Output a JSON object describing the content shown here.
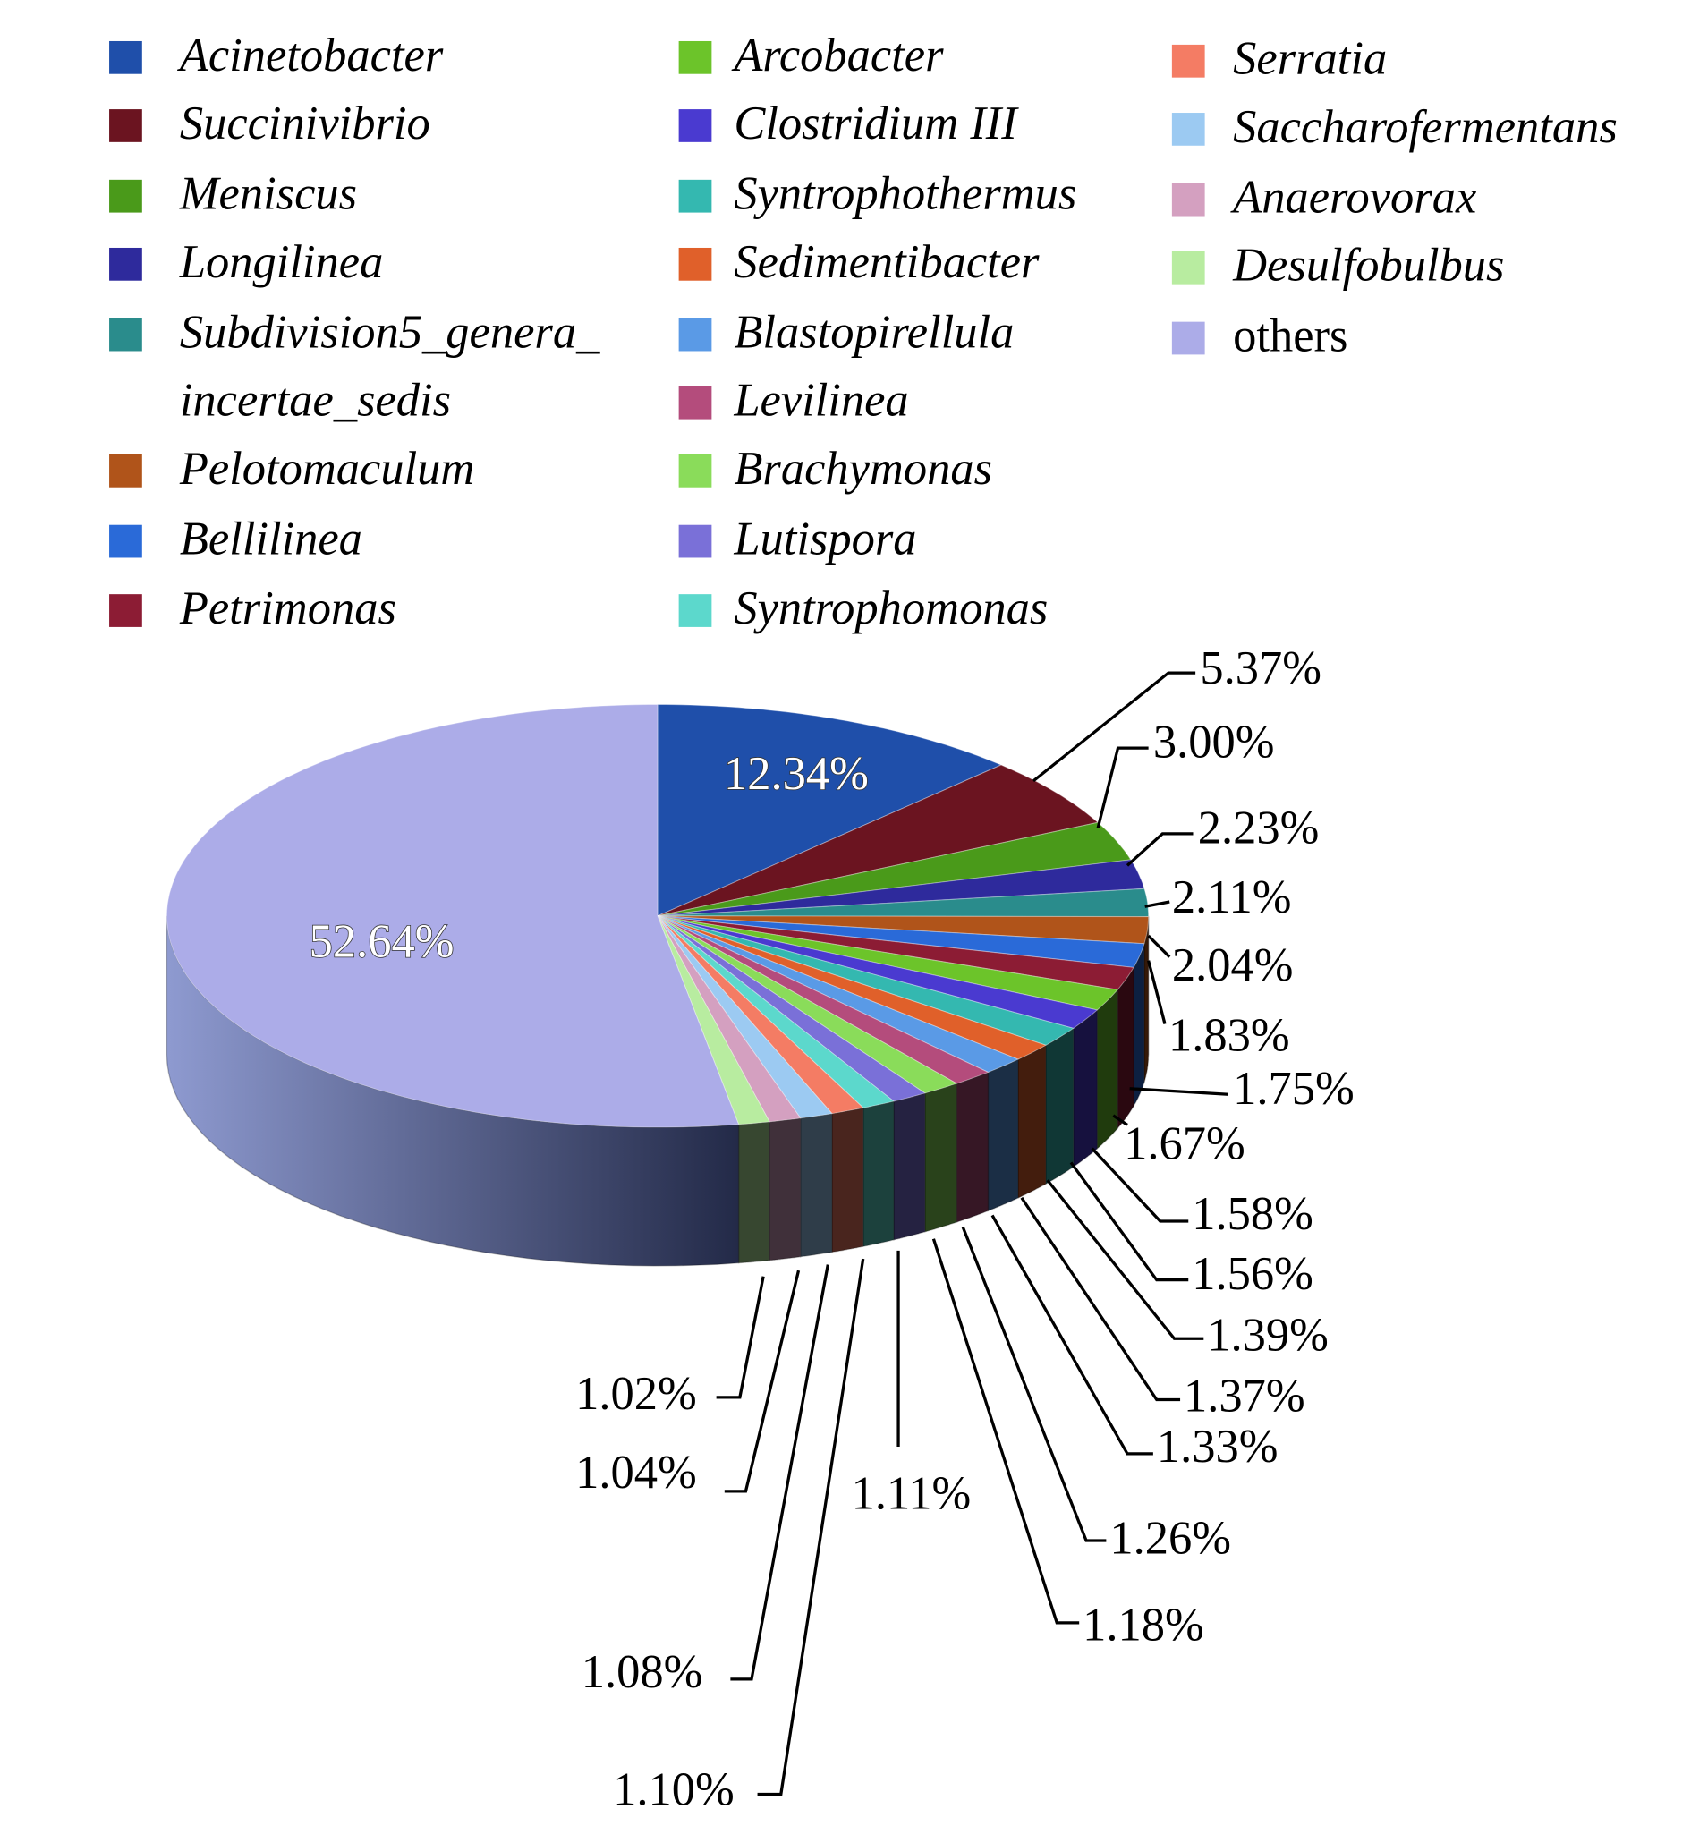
{
  "chart_data": {
    "type": "pie",
    "style": "3d",
    "legend_placement": "top",
    "slices": [
      {
        "name": "Acinetobacter",
        "value": 12.34,
        "label": "12.34%",
        "color": "#1f4faa"
      },
      {
        "name": "Succinivibrio",
        "value": 5.37,
        "label": "5.37%",
        "color": "#6b1420"
      },
      {
        "name": "Meniscus",
        "value": 3.0,
        "label": "3.00%",
        "color": "#4a9a1a"
      },
      {
        "name": "Longilinea",
        "value": 2.23,
        "label": "2.23%",
        "color": "#2e2a9c"
      },
      {
        "name": "Subdivision5_genera_incertae_sedis",
        "value": 2.11,
        "label": "2.11%",
        "color": "#2a8c8c"
      },
      {
        "name": "Pelotomaculum",
        "value": 2.04,
        "label": "2.04%",
        "color": "#b0541a"
      },
      {
        "name": "Bellilinea",
        "value": 1.83,
        "label": "1.83%",
        "color": "#2a6ad8"
      },
      {
        "name": "Petrimonas",
        "value": 1.75,
        "label": "1.75%",
        "color": "#8c1c34"
      },
      {
        "name": "Arcobacter",
        "value": 1.67,
        "label": "1.67%",
        "color": "#6cc42a"
      },
      {
        "name": "Clostridium III",
        "value": 1.58,
        "label": "1.58%",
        "color": "#4a3ad0"
      },
      {
        "name": "Syntrophothermus",
        "value": 1.56,
        "label": "1.56%",
        "color": "#34b8b0"
      },
      {
        "name": "Sedimentibacter",
        "value": 1.39,
        "label": "1.39%",
        "color": "#e0602a"
      },
      {
        "name": "Blastopirellula",
        "value": 1.37,
        "label": "1.37%",
        "color": "#5a9ae6"
      },
      {
        "name": "Levilinea",
        "value": 1.33,
        "label": "1.33%",
        "color": "#b44c7c"
      },
      {
        "name": "Brachymonas",
        "value": 1.26,
        "label": "1.26%",
        "color": "#8adc5a"
      },
      {
        "name": "Lutispora",
        "value": 1.18,
        "label": "1.18%",
        "color": "#7a70d8"
      },
      {
        "name": "Syntrophomonas",
        "value": 1.11,
        "label": "1.11%",
        "color": "#5cd8cc"
      },
      {
        "name": "Serratia",
        "value": 1.1,
        "label": "1.10%",
        "color": "#f47c64"
      },
      {
        "name": "Saccharofermentans",
        "value": 1.08,
        "label": "1.08%",
        "color": "#9ccaf2"
      },
      {
        "name": "Anaerovorax",
        "value": 1.04,
        "label": "1.04%",
        "color": "#d4a0c0"
      },
      {
        "name": "Desulfobulbus",
        "value": 1.02,
        "label": "1.02%",
        "color": "#b8eca0"
      },
      {
        "name": "others",
        "value": 52.64,
        "label": "52.64%",
        "color": "#acace8"
      }
    ],
    "legend": [
      [
        "Acinetobacter",
        "Succinivibrio",
        "Meniscus",
        "Longilinea",
        "Subdivision5_genera_",
        "incertae_sedis",
        "Pelotomaculum",
        "Bellilinea",
        "Petrimonas"
      ],
      [
        "Arcobacter",
        "Clostridium III",
        "Syntrophothermus",
        "Sedimentibacter",
        "Blastopirellula",
        "Levilinea",
        "Brachymonas",
        "Lutispora",
        "Syntrophomonas"
      ],
      [
        "Serratia",
        "Saccharofermentans",
        "Anaerovorax",
        "Desulfobulbus",
        "others"
      ]
    ]
  }
}
